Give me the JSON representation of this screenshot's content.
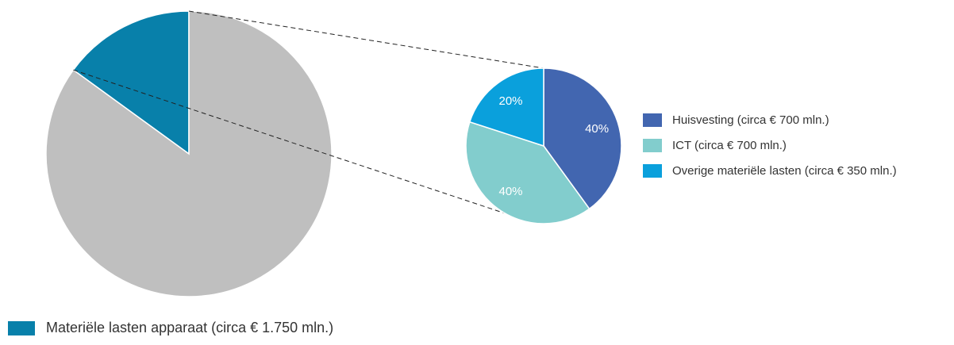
{
  "chart_data": [
    {
      "type": "pie",
      "slices": [
        {
          "label": "Materiële lasten apparaat (circa € 1.750 mln.)",
          "value": 15,
          "color": "#0880AA"
        },
        {
          "label": "",
          "value": 85,
          "color": "#BFBFBF"
        }
      ],
      "legend": [
        {
          "label": "Materiële lasten apparaat (circa € 1.750 mln.)",
          "color": "#0880AA"
        }
      ],
      "legend_position": "bottom-left"
    },
    {
      "type": "pie",
      "slices": [
        {
          "label": "Huisvesting (circa € 700 mln.)",
          "value": 40,
          "display": "40%",
          "color": "#4266B0"
        },
        {
          "label": "ICT (circa € 700 mln.)",
          "value": 40,
          "display": "40%",
          "color": "#82CDCD"
        },
        {
          "label": "Overige materiële lasten (circa € 350 mln.)",
          "value": 20,
          "display": "20%",
          "color": "#0AA0DC"
        }
      ],
      "legend": [
        {
          "label": "Huisvesting (circa € 700 mln.)",
          "color": "#4266B0"
        },
        {
          "label": "ICT (circa € 700 mln.)",
          "color": "#82CDCD"
        },
        {
          "label": "Overige materiële lasten (circa € 350 mln.)",
          "color": "#0AA0DC"
        }
      ],
      "legend_position": "right"
    }
  ]
}
